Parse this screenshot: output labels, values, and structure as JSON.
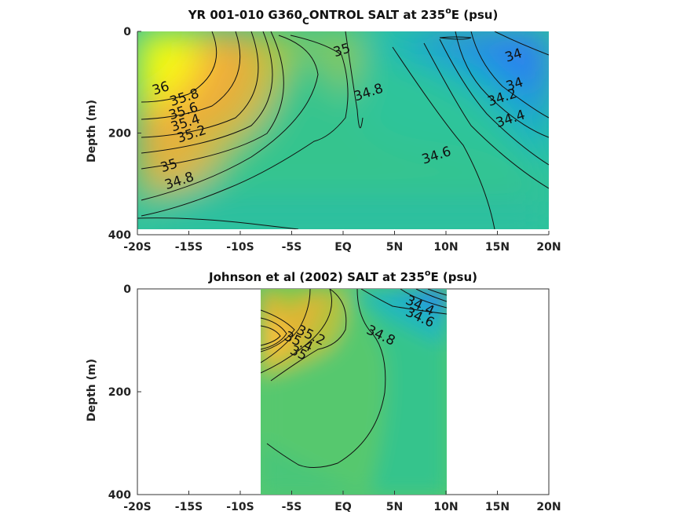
{
  "chart_data": [
    {
      "type": "heatmap",
      "title_parts": [
        "YR 001-010 G360",
        "C",
        "ONTROL SALT at 235",
        "o",
        "E (psu)"
      ],
      "ylabel": "Depth (m)",
      "xticks": [
        "-20S",
        "-15S",
        "-10S",
        "-5S",
        "EQ",
        "5N",
        "10N",
        "15N",
        "20N"
      ],
      "xtick_values": [
        -20,
        -15,
        -10,
        -5,
        0,
        5,
        10,
        15,
        20
      ],
      "yticks": [
        "0",
        "200",
        "400"
      ],
      "ytick_values": [
        0,
        200,
        400
      ],
      "xlim": [
        -20,
        20
      ],
      "ylim": [
        400,
        0
      ],
      "data_extent": {
        "x": [
          -20,
          20
        ],
        "y": [
          0,
          385
        ]
      },
      "colorscale": "parula",
      "contour_levels": [
        34,
        34.2,
        34.4,
        34.6,
        34.8,
        35,
        35.2,
        35.4,
        35.6,
        35.8,
        36
      ],
      "contour_labels": [
        {
          "text": "36",
          "x": -17.6,
          "y": 120
        },
        {
          "text": "35.8",
          "x": -15.3,
          "y": 138
        },
        {
          "text": "35.6",
          "x": -15.4,
          "y": 165
        },
        {
          "text": "35.4",
          "x": -15.2,
          "y": 188
        },
        {
          "text": "35.2",
          "x": -14.6,
          "y": 210
        },
        {
          "text": "35",
          "x": -16.8,
          "y": 272
        },
        {
          "text": "34.8",
          "x": -15.8,
          "y": 302
        },
        {
          "text": "35",
          "x": 0,
          "y": 45
        },
        {
          "text": "34.8",
          "x": 2.6,
          "y": 128
        },
        {
          "text": "34",
          "x": 16.7,
          "y": 55
        },
        {
          "text": "34",
          "x": 16.8,
          "y": 112
        },
        {
          "text": "34.2",
          "x": 15.6,
          "y": 138
        },
        {
          "text": "34.4",
          "x": 16.4,
          "y": 180
        },
        {
          "text": "34.6",
          "x": 9.2,
          "y": 252
        }
      ]
    },
    {
      "type": "heatmap",
      "title_parts": [
        "Johnson et al (2002) SALT at 235",
        "o",
        "E (psu)"
      ],
      "ylabel": "Depth (m)",
      "xticks": [
        "-20S",
        "-15S",
        "-10S",
        "-5S",
        "EQ",
        "5N",
        "10N",
        "15N",
        "20N"
      ],
      "xtick_values": [
        -20,
        -15,
        -10,
        -5,
        0,
        5,
        10,
        15,
        20
      ],
      "yticks": [
        "0",
        "200",
        "400"
      ],
      "ytick_values": [
        0,
        200,
        400
      ],
      "xlim": [
        -20,
        20
      ],
      "ylim": [
        400,
        0
      ],
      "data_extent": {
        "x": [
          -8,
          10
        ],
        "y": [
          0,
          400
        ]
      },
      "colorscale": "parula",
      "contour_labels": [
        {
          "text": "34.4",
          "x": 7.3,
          "y": 40
        },
        {
          "text": "34.6",
          "x": 7.3,
          "y": 63
        },
        {
          "text": "34.8",
          "x": 3.5,
          "y": 98
        },
        {
          "text": "35.2",
          "x": -3.3,
          "y": 98
        },
        {
          "text": "35.4",
          "x": -4.5,
          "y": 110
        },
        {
          "text": "35",
          "x": -4.5,
          "y": 132
        }
      ]
    }
  ]
}
